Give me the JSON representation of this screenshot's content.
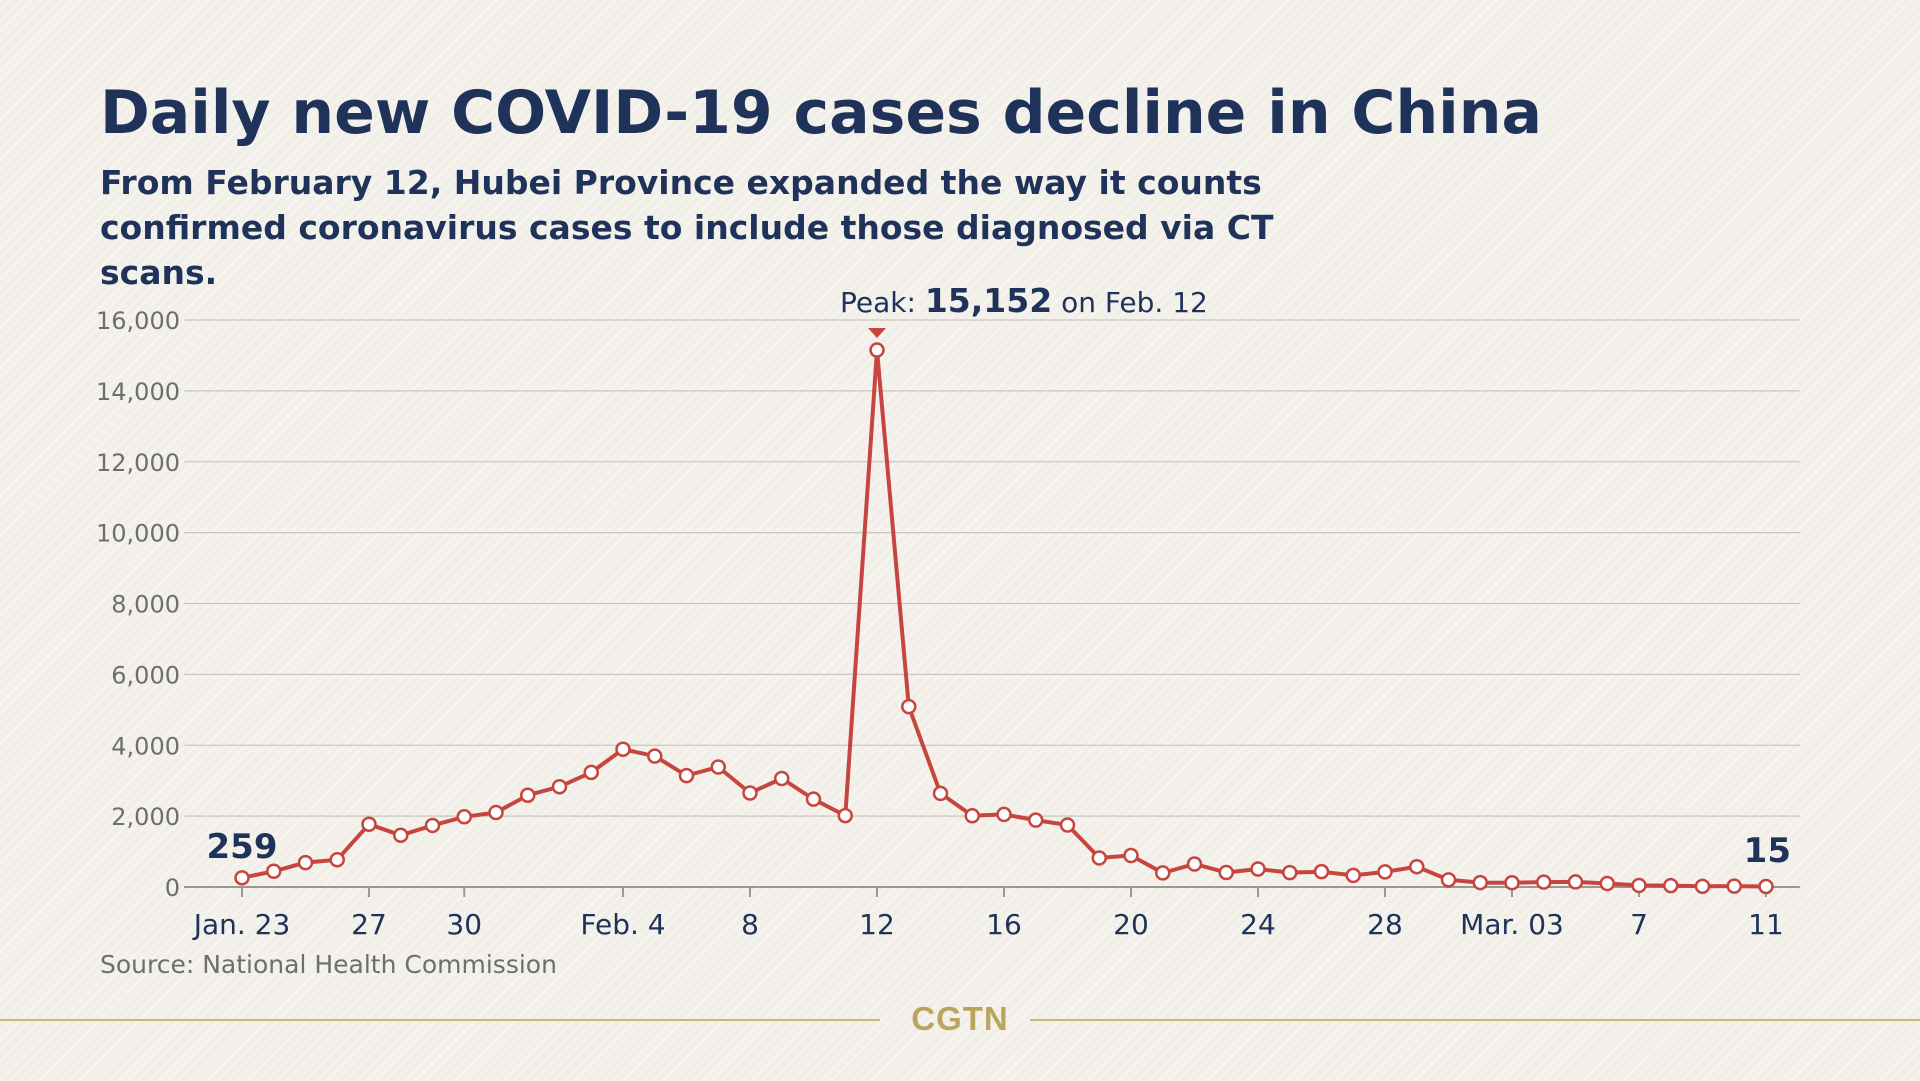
{
  "title": "Daily new COVID-19 cases decline in China",
  "subtitle": "From February 12, Hubei Province expanded the way it counts confirmed coronavirus cases to include those diagnosed via CT scans.",
  "source": "Source: National Health Commission",
  "brand": "CGTN",
  "colors": {
    "title": "#1f3259",
    "line": "#c6463f",
    "grid": "#c8c6c0",
    "axis_text": "#6e6e6e",
    "brand": "#b9a55f"
  },
  "chart_data": {
    "type": "line",
    "title": "Daily new COVID-19 cases decline in China",
    "xlabel": "",
    "ylabel": "",
    "ylim": [
      0,
      16000
    ],
    "y_ticks": [
      0,
      2000,
      4000,
      6000,
      8000,
      10000,
      12000,
      14000,
      16000
    ],
    "y_tick_labels": [
      "0",
      "2,000",
      "4,000",
      "6,000",
      "8,000",
      "10,000",
      "12,000",
      "14,000",
      "16,000"
    ],
    "x_tick_labels": [
      {
        "index": 0,
        "label": "Jan. 23"
      },
      {
        "index": 4,
        "label": "27"
      },
      {
        "index": 7,
        "label": "30"
      },
      {
        "index": 12,
        "label": "Feb. 4"
      },
      {
        "index": 16,
        "label": "8"
      },
      {
        "index": 20,
        "label": "12"
      },
      {
        "index": 24,
        "label": "16"
      },
      {
        "index": 28,
        "label": "20"
      },
      {
        "index": 32,
        "label": "24"
      },
      {
        "index": 36,
        "label": "28"
      },
      {
        "index": 40,
        "label": "Mar. 03"
      },
      {
        "index": 44,
        "label": "7"
      },
      {
        "index": 48,
        "label": "11"
      }
    ],
    "grid": true,
    "series": [
      {
        "values": [
          259,
          444,
          688,
          769,
          1771,
          1459,
          1737,
          1982,
          2102,
          2590,
          2829,
          3235,
          3887,
          3694,
          3143,
          3385,
          2652,
          3062,
          2478,
          2015,
          15152,
          5090,
          2641,
          2009,
          2048,
          1886,
          1749,
          820,
          889,
          397,
          648,
          409,
          508,
          406,
          433,
          327,
          427,
          573,
          202,
          125,
          119,
          139,
          143,
          99,
          44,
          40,
          19,
          24,
          15
        ]
      }
    ],
    "annotations": {
      "peak_prefix": "Peak: ",
      "peak_value": "15,152",
      "peak_suffix": " on Feb. 12",
      "first_label": "259",
      "last_label": "15"
    }
  }
}
